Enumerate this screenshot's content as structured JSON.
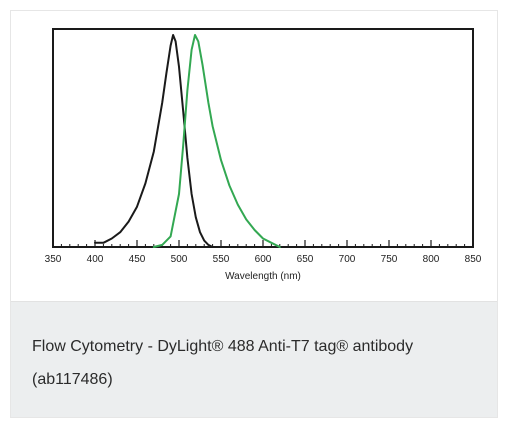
{
  "caption": {
    "text": "Flow Cytometry - DyLight® 488 Anti-T7 tag® antibody (ab117486)"
  },
  "chart_data": {
    "type": "line",
    "title": "",
    "xlabel": "Wavelength (nm)",
    "ylabel": "",
    "xlim": [
      350,
      850
    ],
    "ylim": [
      0,
      1
    ],
    "x_ticks": [
      350,
      400,
      450,
      500,
      550,
      600,
      650,
      700,
      750,
      800,
      850
    ],
    "x_tick_labels": [
      "350",
      "400",
      "450",
      "500",
      "550",
      "600",
      "650",
      "700",
      "750",
      "800",
      "850"
    ],
    "grid": false,
    "legend": "none",
    "series": [
      {
        "color": "#1a1a1a",
        "x": [
          400,
          410,
          420,
          430,
          440,
          450,
          460,
          470,
          480,
          485,
          490,
          493,
          496,
          500,
          505,
          510,
          515,
          520,
          525,
          530,
          535,
          540
        ],
        "y": [
          0.02,
          0.02,
          0.04,
          0.07,
          0.12,
          0.19,
          0.3,
          0.45,
          0.68,
          0.82,
          0.95,
          1.0,
          0.97,
          0.85,
          0.64,
          0.42,
          0.25,
          0.14,
          0.07,
          0.03,
          0.01,
          0.0
        ]
      },
      {
        "color": "#33a852",
        "x": [
          470,
          480,
          490,
          500,
          505,
          510,
          515,
          519,
          523,
          528,
          535,
          540,
          550,
          560,
          570,
          580,
          590,
          600,
          610,
          620
        ],
        "y": [
          0.0,
          0.01,
          0.05,
          0.25,
          0.48,
          0.74,
          0.93,
          1.0,
          0.97,
          0.86,
          0.68,
          0.57,
          0.41,
          0.29,
          0.2,
          0.13,
          0.08,
          0.04,
          0.02,
          0.0
        ]
      }
    ]
  }
}
